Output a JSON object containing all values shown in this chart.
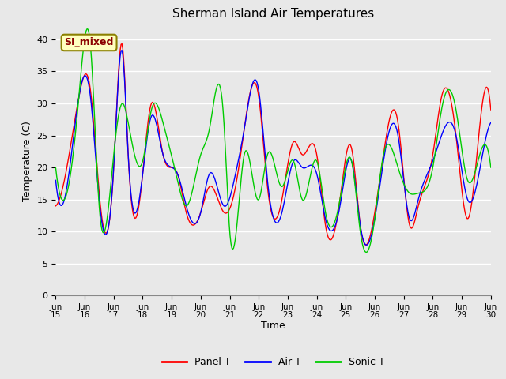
{
  "title": "Sherman Island Air Temperatures",
  "xlabel": "Time",
  "ylabel": "Temperature (C)",
  "annotation_text": "SI_mixed",
  "annotation_color": "#8B0000",
  "annotation_bg": "#FFFFC0",
  "ylim": [
    0,
    42
  ],
  "yticks": [
    0,
    5,
    10,
    15,
    20,
    25,
    30,
    35,
    40
  ],
  "xtick_labels": [
    "Jun\n15",
    "Jun\n16",
    "Jun\n17",
    "Jun\n18",
    "Jun\n19",
    "Jun\n20",
    "Jun\n21",
    "Jun\n22",
    "Jun\n23",
    "Jun\n24",
    "Jun\n25",
    "Jun\n26",
    "Jun\n27",
    "Jun\n28",
    "Jun\n29",
    "Jun\n30"
  ],
  "xtick_labels_first": [
    "Jun",
    "15",
    "Jun",
    "16",
    "Jun",
    "17",
    "Jun",
    "18",
    "Jun",
    "19",
    "Jun",
    "20",
    "Jun",
    "21",
    "Jun",
    "22",
    "Jun",
    "23",
    "Jun",
    "24",
    "Jun",
    "25",
    "Jun",
    "26",
    "Jun",
    "27",
    "Jun",
    "28",
    "Jun",
    "29",
    "Jun",
    "30"
  ],
  "legend_entries": [
    "Panel T",
    "Air T",
    "Sonic T"
  ],
  "legend_colors": [
    "#FF0000",
    "#0000FF",
    "#00CC00"
  ],
  "background_color": "#E8E8E8",
  "plot_bg_color": "#E8E8E8",
  "grid_color": "#FFFFFF",
  "figsize": [
    6.4,
    4.8
  ],
  "dpi": 100
}
